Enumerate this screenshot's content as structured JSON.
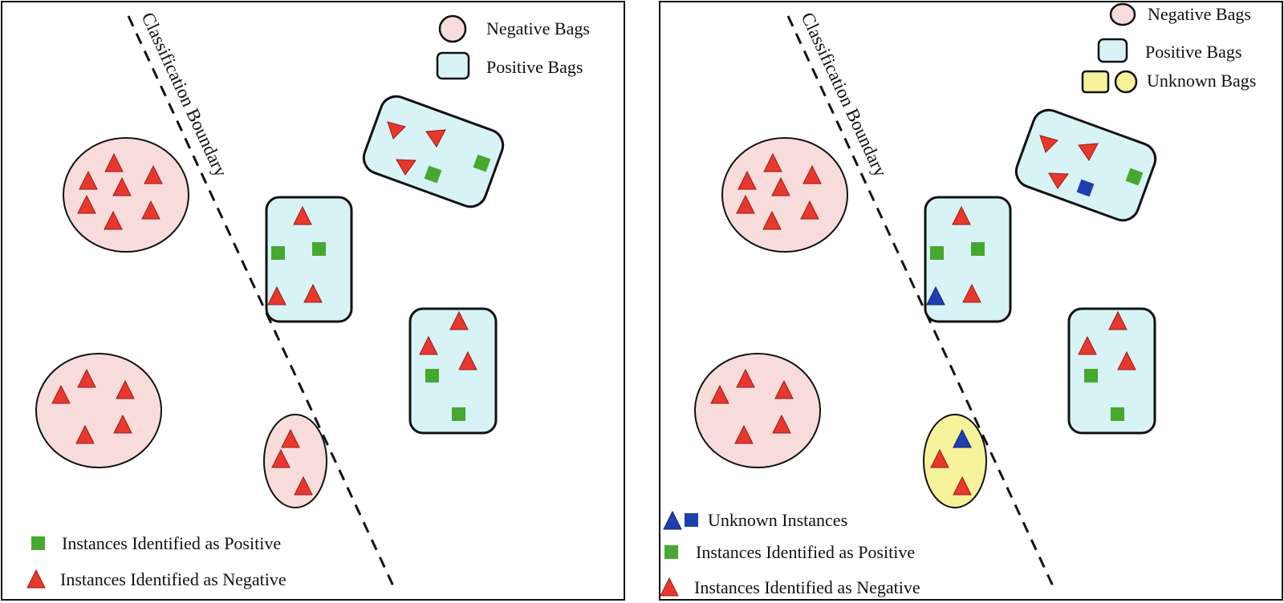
{
  "colors": {
    "negative_bag_fill": "#f8dcdc",
    "positive_bag_fill": "#d7f3f6",
    "unknown_bag_fill": "#f6f29c",
    "negative_instance": "#e8382d",
    "positive_instance": "#46a82e",
    "unknown_instance": "#1f3fae",
    "stroke": "#111111"
  },
  "left_panel": {
    "boundary_label": "Classification Boundary",
    "legend_top": {
      "negative_bags": "Negative Bags",
      "positive_bags": "Positive Bags"
    },
    "legend_bottom": {
      "positive_instances": "Instances Identified as Positive",
      "negative_instances": "Instances Identified as Negative"
    }
  },
  "right_panel": {
    "boundary_label": "Classification Boundary",
    "legend_top": {
      "negative_bags": "Negative Bags",
      "positive_bags": "Positive Bags",
      "unknown_bags": "Unknown Bags"
    },
    "legend_bottom": {
      "unknown_instances": "Unknown Instances",
      "positive_instances": "Instances Identified as Positive",
      "negative_instances": "Instances Identified as Negative"
    }
  }
}
